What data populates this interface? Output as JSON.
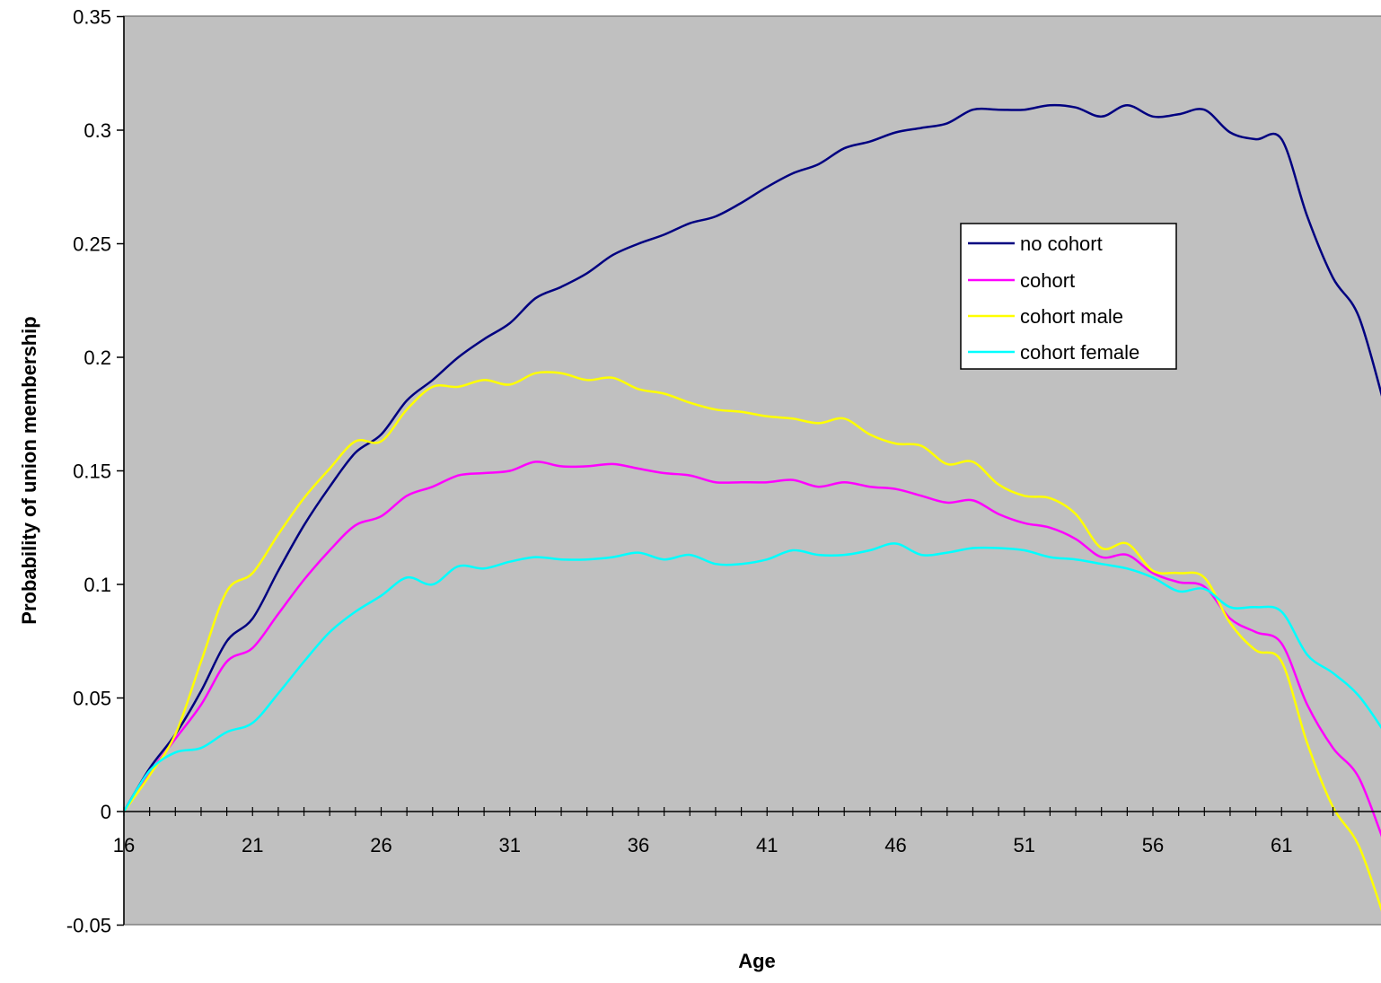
{
  "chart_data": {
    "type": "line",
    "title": "",
    "xlabel": "Age",
    "ylabel": "Probability of union membership",
    "xlim": [
      16,
      65
    ],
    "ylim": [
      -0.05,
      0.35
    ],
    "x_ticks": [
      16,
      21,
      26,
      31,
      36,
      41,
      46,
      51,
      56,
      61
    ],
    "y_ticks": [
      -0.05,
      0,
      0.05,
      0.1,
      0.15,
      0.2,
      0.25,
      0.3,
      0.35
    ],
    "y_tick_labels": [
      "-0.05",
      "0",
      "0.05",
      "0.1",
      "0.15",
      "0.2",
      "0.25",
      "0.3",
      "0.35"
    ],
    "plot_background": "#C0C0C0",
    "grid": false,
    "legend_position": "right, upper-middle inside plot",
    "series": [
      {
        "name": "no cohort",
        "color": "#000080",
        "x": [
          16,
          17,
          18,
          19,
          20,
          21,
          22,
          23,
          24,
          25,
          26,
          27,
          28,
          29,
          30,
          31,
          32,
          33,
          34,
          35,
          36,
          37,
          38,
          39,
          40,
          41,
          42,
          43,
          44,
          45,
          46,
          47,
          48,
          49,
          50,
          51,
          52,
          53,
          54,
          55,
          56,
          57,
          58,
          59,
          60,
          61,
          62,
          63,
          64,
          65
        ],
        "values": [
          0.0,
          0.019,
          0.034,
          0.053,
          0.075,
          0.085,
          0.106,
          0.126,
          0.143,
          0.158,
          0.166,
          0.181,
          0.19,
          0.2,
          0.208,
          0.215,
          0.226,
          0.231,
          0.237,
          0.245,
          0.25,
          0.254,
          0.259,
          0.262,
          0.268,
          0.275,
          0.281,
          0.285,
          0.292,
          0.295,
          0.299,
          0.301,
          0.303,
          0.309,
          0.309,
          0.309,
          0.311,
          0.31,
          0.306,
          0.311,
          0.306,
          0.307,
          0.309,
          0.299,
          0.296,
          0.296,
          0.262,
          0.235,
          0.218,
          0.179
        ]
      },
      {
        "name": "cohort",
        "color": "#FF00FF",
        "x": [
          16,
          17,
          18,
          19,
          20,
          21,
          22,
          23,
          24,
          25,
          26,
          27,
          28,
          29,
          30,
          31,
          32,
          33,
          34,
          35,
          36,
          37,
          38,
          39,
          40,
          41,
          42,
          43,
          44,
          45,
          46,
          47,
          48,
          49,
          50,
          51,
          52,
          53,
          54,
          55,
          56,
          57,
          58,
          59,
          60,
          61,
          62,
          63,
          64,
          65
        ],
        "values": [
          0.0,
          0.017,
          0.032,
          0.047,
          0.066,
          0.072,
          0.087,
          0.102,
          0.115,
          0.126,
          0.13,
          0.139,
          0.143,
          0.148,
          0.149,
          0.15,
          0.154,
          0.152,
          0.152,
          0.153,
          0.151,
          0.149,
          0.148,
          0.145,
          0.145,
          0.145,
          0.146,
          0.143,
          0.145,
          0.143,
          0.142,
          0.139,
          0.136,
          0.137,
          0.131,
          0.127,
          0.125,
          0.12,
          0.112,
          0.113,
          0.105,
          0.101,
          0.099,
          0.085,
          0.079,
          0.074,
          0.047,
          0.028,
          0.015,
          -0.014
        ]
      },
      {
        "name": "cohort male",
        "color": "#FFFF00",
        "x": [
          16,
          17,
          18,
          19,
          20,
          21,
          22,
          23,
          24,
          25,
          26,
          27,
          28,
          29,
          30,
          31,
          32,
          33,
          34,
          35,
          36,
          37,
          38,
          39,
          40,
          41,
          42,
          43,
          44,
          45,
          46,
          47,
          48,
          49,
          50,
          51,
          52,
          53,
          54,
          55,
          56,
          57,
          58,
          59,
          60,
          61,
          62,
          63,
          64,
          65
        ],
        "values": [
          0.0,
          0.016,
          0.034,
          0.066,
          0.097,
          0.105,
          0.122,
          0.138,
          0.151,
          0.163,
          0.163,
          0.177,
          0.187,
          0.187,
          0.19,
          0.188,
          0.193,
          0.193,
          0.19,
          0.191,
          0.186,
          0.184,
          0.18,
          0.177,
          0.176,
          0.174,
          0.173,
          0.171,
          0.173,
          0.166,
          0.162,
          0.161,
          0.153,
          0.154,
          0.144,
          0.139,
          0.138,
          0.131,
          0.116,
          0.118,
          0.106,
          0.105,
          0.103,
          0.083,
          0.071,
          0.066,
          0.03,
          0.002,
          -0.015,
          -0.047
        ]
      },
      {
        "name": "cohort female",
        "color": "#00FFFF",
        "x": [
          16,
          17,
          18,
          19,
          20,
          21,
          22,
          23,
          24,
          25,
          26,
          27,
          28,
          29,
          30,
          31,
          32,
          33,
          34,
          35,
          36,
          37,
          38,
          39,
          40,
          41,
          42,
          43,
          44,
          45,
          46,
          47,
          48,
          49,
          50,
          51,
          52,
          53,
          54,
          55,
          56,
          57,
          58,
          59,
          60,
          61,
          62,
          63,
          64,
          65
        ],
        "values": [
          0.0,
          0.018,
          0.026,
          0.028,
          0.035,
          0.039,
          0.052,
          0.066,
          0.079,
          0.088,
          0.095,
          0.103,
          0.1,
          0.108,
          0.107,
          0.11,
          0.112,
          0.111,
          0.111,
          0.112,
          0.114,
          0.111,
          0.113,
          0.109,
          0.109,
          0.111,
          0.115,
          0.113,
          0.113,
          0.115,
          0.118,
          0.113,
          0.114,
          0.116,
          0.116,
          0.115,
          0.112,
          0.111,
          0.109,
          0.107,
          0.103,
          0.097,
          0.098,
          0.09,
          0.09,
          0.088,
          0.069,
          0.061,
          0.051,
          0.035
        ]
      }
    ]
  }
}
